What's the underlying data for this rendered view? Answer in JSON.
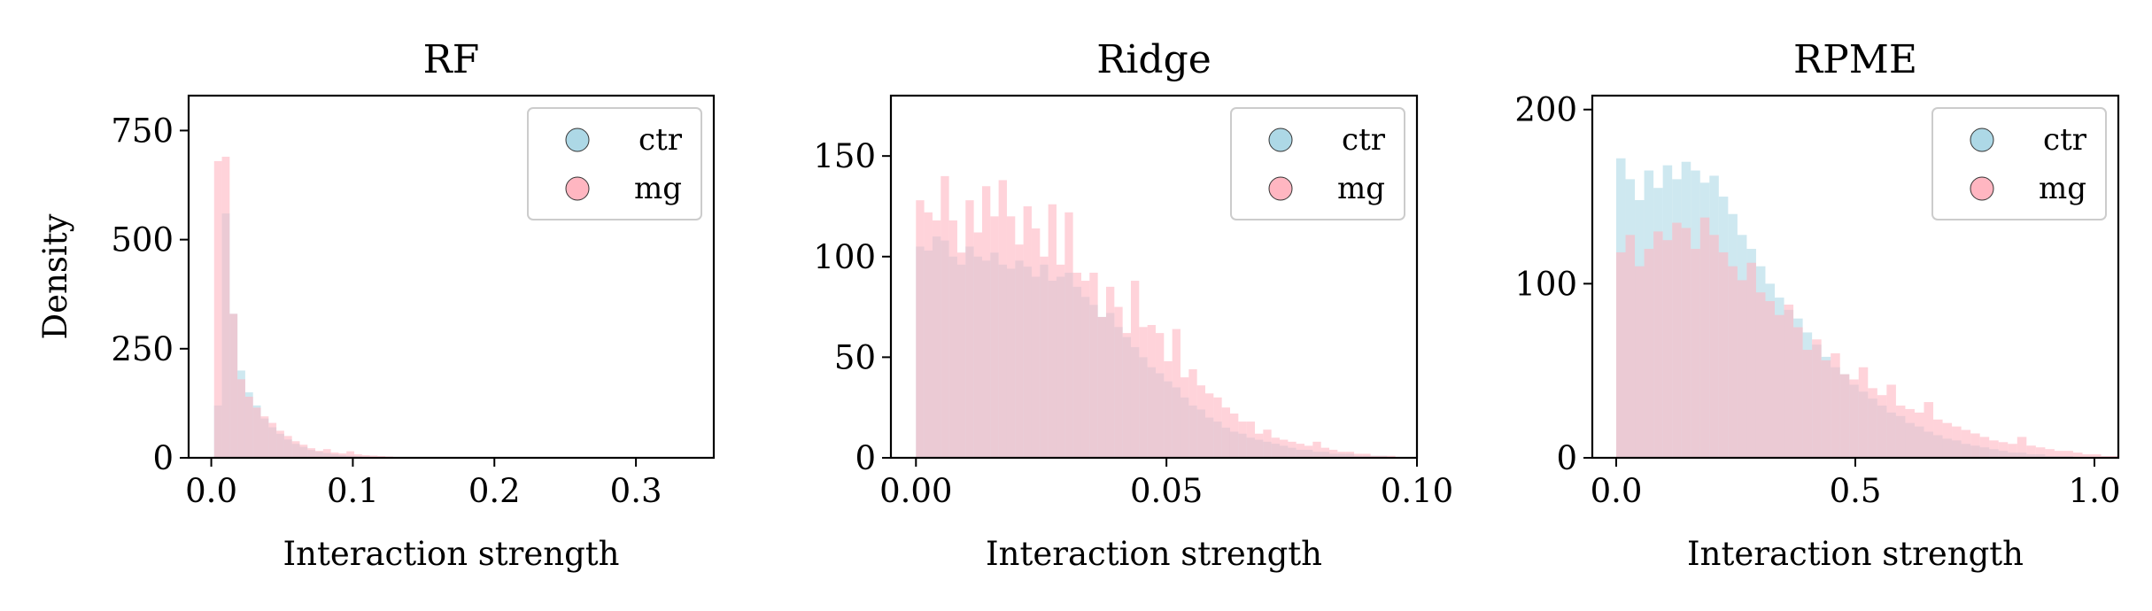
{
  "chart_data": [
    {
      "type": "histogram",
      "title": "RF",
      "xlabel": "Interaction strength",
      "ylabel": "Density",
      "xlim": [
        -0.016,
        0.355
      ],
      "ylim": [
        0,
        830
      ],
      "xticks": [
        0.0,
        0.1,
        0.2,
        0.3
      ],
      "xtick_labels": [
        "0.0",
        "0.1",
        "0.2",
        "0.3"
      ],
      "yticks": [
        0,
        250,
        500,
        750
      ],
      "ytick_labels": [
        "0",
        "250",
        "500",
        "750"
      ],
      "bin_start": 0.002,
      "bin_width": 0.0055,
      "legend_position": "top-right",
      "series": [
        {
          "name": "ctr",
          "color": "#add8e6",
          "values": [
            120,
            560,
            330,
            200,
            150,
            120,
            90,
            70,
            55,
            42,
            32,
            25,
            18,
            14,
            11,
            8,
            6,
            5,
            4,
            3,
            2,
            2,
            1,
            1,
            1,
            0,
            0,
            0,
            0,
            0,
            0,
            0,
            0,
            0,
            0,
            0,
            0,
            0,
            0,
            0,
            0,
            0,
            0,
            0,
            0,
            0,
            0,
            0,
            0,
            0,
            0,
            0,
            0,
            0,
            0,
            0,
            0,
            0,
            0,
            0
          ]
        },
        {
          "name": "mg",
          "color": "#ffb6c1",
          "values": [
            680,
            690,
            330,
            180,
            140,
            115,
            95,
            80,
            62,
            50,
            38,
            30,
            22,
            16,
            20,
            12,
            10,
            15,
            8,
            6,
            5,
            4,
            3,
            2,
            2,
            1,
            1,
            0,
            0,
            0,
            0,
            0,
            0,
            0,
            0,
            0,
            0,
            0,
            0,
            0,
            0,
            0,
            0,
            0,
            0,
            0,
            0,
            0,
            0,
            0,
            0,
            0,
            0,
            0,
            0,
            0,
            0,
            0,
            0,
            0
          ]
        }
      ]
    },
    {
      "type": "histogram",
      "title": "Ridge",
      "xlabel": "Interaction strength",
      "ylabel": "",
      "xlim": [
        -0.005,
        0.1
      ],
      "ylim": [
        0,
        180
      ],
      "xticks": [
        0.0,
        0.05,
        0.1
      ],
      "xtick_labels": [
        "0.00",
        "0.05",
        "0.10"
      ],
      "yticks": [
        0,
        50,
        100,
        150
      ],
      "ytick_labels": [
        "0",
        "50",
        "100",
        "150"
      ],
      "bin_start": 0.0,
      "bin_width": 0.00165,
      "legend_position": "top-right",
      "series": [
        {
          "name": "ctr",
          "color": "#add8e6",
          "values": [
            105,
            103,
            110,
            108,
            100,
            96,
            105,
            100,
            98,
            102,
            96,
            94,
            98,
            95,
            90,
            96,
            88,
            90,
            92,
            85,
            80,
            76,
            70,
            72,
            65,
            60,
            55,
            50,
            45,
            42,
            38,
            35,
            30,
            26,
            24,
            20,
            18,
            15,
            13,
            12,
            10,
            9,
            8,
            7,
            6,
            5,
            4,
            4,
            3,
            3,
            2,
            2,
            2,
            1,
            1,
            1,
            1,
            0,
            0,
            0
          ]
        },
        {
          "name": "mg",
          "color": "#ffb6c1",
          "values": [
            128,
            122,
            118,
            140,
            118,
            102,
            128,
            112,
            135,
            120,
            138,
            120,
            106,
            125,
            114,
            100,
            126,
            96,
            122,
            92,
            88,
            92,
            70,
            85,
            75,
            62,
            88,
            65,
            66,
            62,
            48,
            64,
            40,
            44,
            36,
            32,
            30,
            25,
            22,
            18,
            18,
            12,
            14,
            10,
            9,
            8,
            7,
            6,
            8,
            5,
            4,
            3,
            3,
            2,
            2,
            1,
            1,
            1,
            0,
            0
          ]
        }
      ]
    },
    {
      "type": "histogram",
      "title": "RPME",
      "xlabel": "Interaction strength",
      "ylabel": "",
      "xlim": [
        -0.05,
        1.05
      ],
      "ylim": [
        0,
        208
      ],
      "xticks": [
        0.0,
        0.5,
        1.0
      ],
      "xtick_labels": [
        "0.0",
        "0.5",
        "1.0"
      ],
      "yticks": [
        0,
        100,
        200
      ],
      "ytick_labels": [
        "0",
        "100",
        "200"
      ],
      "bin_start": 0.0,
      "bin_width": 0.0195,
      "legend_position": "top-right",
      "series": [
        {
          "name": "ctr",
          "color": "#add8e6",
          "values": [
            172,
            160,
            148,
            165,
            155,
            168,
            160,
            170,
            165,
            158,
            162,
            150,
            140,
            128,
            120,
            110,
            100,
            92,
            85,
            80,
            72,
            65,
            58,
            52,
            48,
            42,
            38,
            34,
            30,
            26,
            24,
            20,
            18,
            15,
            13,
            11,
            10,
            8,
            7,
            6,
            5,
            4,
            3,
            3,
            2,
            2,
            1,
            1,
            1,
            0,
            0,
            0,
            0,
            0
          ]
        },
        {
          "name": "mg",
          "color": "#ffb6c1",
          "values": [
            118,
            128,
            110,
            120,
            130,
            125,
            135,
            132,
            120,
            138,
            128,
            118,
            110,
            102,
            112,
            95,
            90,
            82,
            88,
            75,
            62,
            68,
            56,
            60,
            48,
            45,
            52,
            40,
            36,
            42,
            30,
            28,
            26,
            32,
            22,
            20,
            18,
            16,
            14,
            12,
            10,
            9,
            8,
            12,
            7,
            6,
            5,
            4,
            4,
            3,
            2,
            2,
            1,
            1
          ]
        }
      ]
    }
  ]
}
